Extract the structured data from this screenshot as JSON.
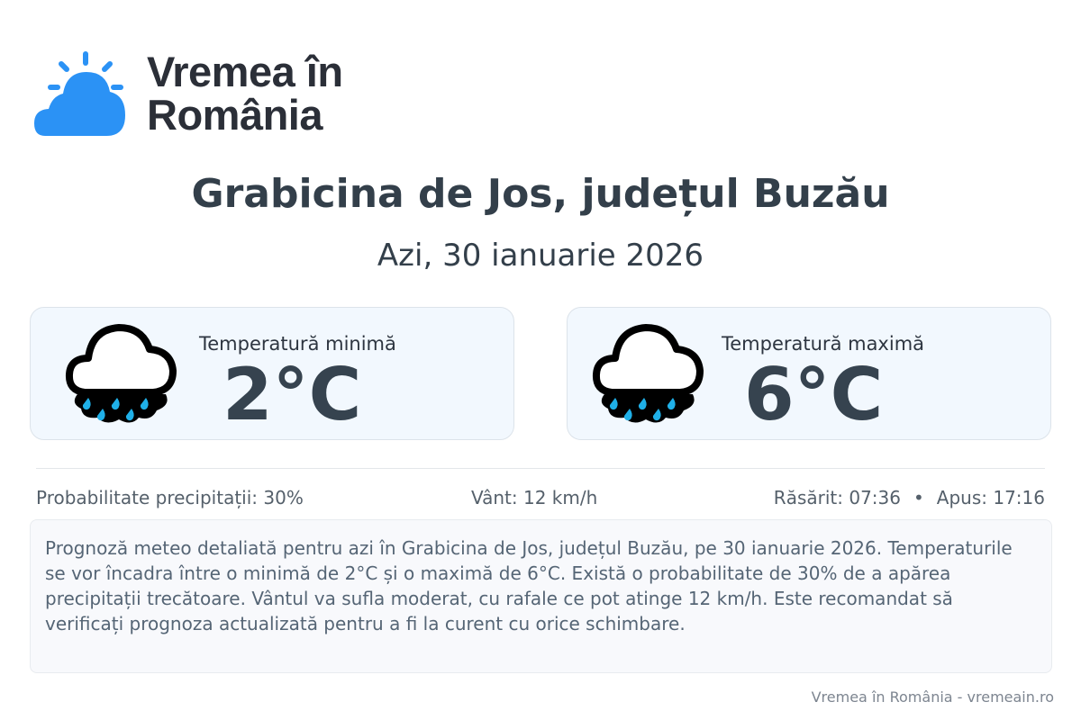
{
  "brand": {
    "line1": "Vremea în",
    "line2": "România",
    "color": "#2b92f5"
  },
  "header": {
    "title": "Grabicina de Jos, județul Buzău",
    "date": "Azi, 30 ianuarie 2026"
  },
  "cards": [
    {
      "label": "Temperatură minimă",
      "value": "2°C",
      "icon": "rain-cloud-icon"
    },
    {
      "label": "Temperatură maximă",
      "value": "6°C",
      "icon": "rain-cloud-icon"
    }
  ],
  "stats": {
    "precip": "Probabilitate precipitații: 30%",
    "wind": "Vânt: 12 km/h",
    "sunrise": "Răsărit: 07:36",
    "separator": "•",
    "sunset": "Apus: 17:16"
  },
  "description": "Prognoză meteo detaliată pentru azi în Grabicina de Jos, județul Buzău, pe 30 ianuarie 2026. Temperaturile se vor încadra între o minimă de 2°C și o maximă de 6°C. Există o probabilitate de 30% de a apărea precipitații trecătoare. Vântul va sufla moderat, cu rafale ce pot atinge 12 km/h. Este recomandat să verificați prognoza actualizată pentru a fi la curent cu orice schimbare.",
  "footer": "Vremea în România - vremeain.ro"
}
